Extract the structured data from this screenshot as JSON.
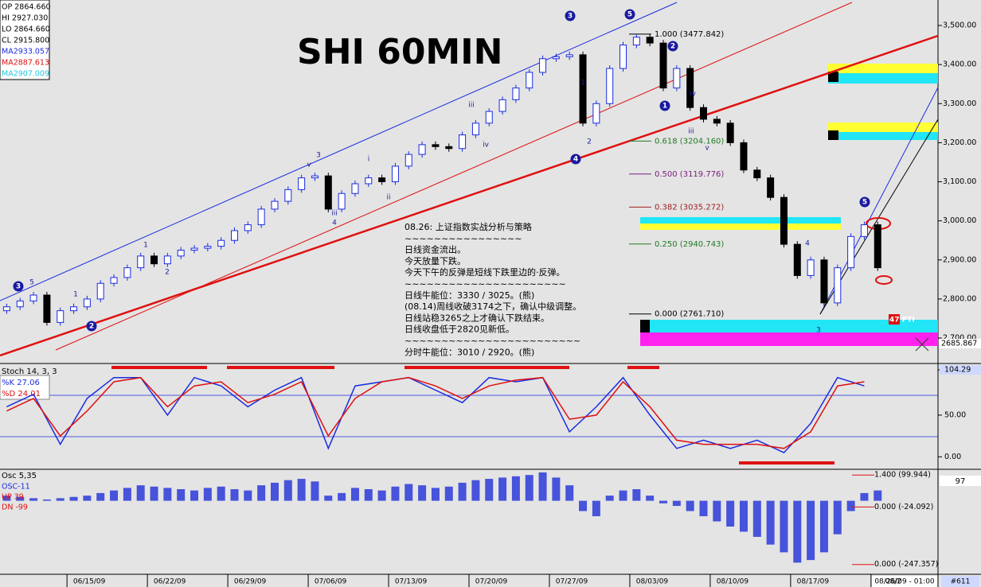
{
  "chart_data": {
    "type": "candlestick",
    "title": "SHI 60MIN",
    "info": [
      "OP 2864.660",
      "HI 2927.030",
      "LO 2864.660",
      "CL 2915.800",
      "MA2933.057",
      "MA2887.613",
      "MA2907.009"
    ],
    "xlim": [
      0,
      70
    ],
    "xticks": [
      {
        "value": 5,
        "label": "06/15/09"
      },
      {
        "value": 11,
        "label": "06/22/09"
      },
      {
        "value": 17,
        "label": "06/29/09"
      },
      {
        "value": 23,
        "label": "07/06/09"
      },
      {
        "value": 29,
        "label": "07/13/09"
      },
      {
        "value": 35,
        "label": "07/20/09"
      },
      {
        "value": 41,
        "label": "07/27/09"
      },
      {
        "value": 47,
        "label": "08/03/09"
      },
      {
        "value": 53,
        "label": "08/10/09"
      },
      {
        "value": 59,
        "label": "08/17/09"
      },
      {
        "value": 65,
        "label": "08/2"
      }
    ],
    "time_label": "08/26/09 - 01:00",
    "bar_count": "#611",
    "ylim": [
      2639,
      3555
    ],
    "yticks": [
      {
        "value": 3500,
        "label": "3,500.00"
      },
      {
        "value": 3400,
        "label": "3,400.00"
      },
      {
        "value": 3300,
        "label": "3,300.00"
      },
      {
        "value": 3200,
        "label": "3,200.00"
      },
      {
        "value": 3100,
        "label": "3,100.00"
      },
      {
        "value": 3000,
        "label": "3,000.00"
      },
      {
        "value": 2900,
        "label": "2,900.00"
      },
      {
        "value": 2800,
        "label": "2,800.00"
      },
      {
        "value": 2700,
        "label": "2,700.00"
      }
    ],
    "last_price": {
      "value": 2685.867,
      "label": "2685.867"
    },
    "pti": "47 PTI",
    "open": [
      2770,
      2780,
      2795,
      2810,
      2740,
      2770,
      2780,
      2800,
      2840,
      2855,
      2880,
      2910,
      2890,
      2910,
      2925,
      2930,
      2935,
      2950,
      2975,
      2990,
      3030,
      3050,
      3080,
      3110,
      3115,
      3030,
      3070,
      3095,
      3110,
      3100,
      3140,
      3170,
      3195,
      3190,
      3185,
      3220,
      3250,
      3280,
      3310,
      3340,
      3380,
      3415,
      3420,
      3425,
      3250,
      3300,
      3390,
      3450,
      3470,
      3455,
      3340,
      3390,
      3290,
      3260,
      3250,
      3200,
      3130,
      3110,
      3060,
      2940,
      2860,
      2900,
      2790,
      2880,
      2960,
      2990
    ],
    "close": [
      2780,
      2795,
      2810,
      2740,
      2770,
      2780,
      2800,
      2840,
      2855,
      2880,
      2910,
      2890,
      2910,
      2925,
      2930,
      2935,
      2950,
      2975,
      2990,
      3030,
      3050,
      3080,
      3110,
      3115,
      3030,
      3070,
      3095,
      3110,
      3100,
      3140,
      3170,
      3195,
      3190,
      3185,
      3220,
      3250,
      3280,
      3310,
      3340,
      3380,
      3415,
      3420,
      3425,
      3250,
      3300,
      3390,
      3450,
      3470,
      3455,
      3340,
      3390,
      3290,
      3260,
      3250,
      3200,
      3130,
      3110,
      3060,
      2940,
      2860,
      2900,
      2790,
      2880,
      2960,
      2990,
      2880
    ],
    "fib": [
      {
        "value": 3477.842,
        "label": "1.000 (3477.842)"
      },
      {
        "value": 3204.16,
        "label": "0.618 (3204.160)"
      },
      {
        "value": 3119.776,
        "label": "0.500 (3119.776)"
      },
      {
        "value": 3035.272,
        "label": "0.382 (3035.272)"
      },
      {
        "value": 2940.743,
        "label": "0.250 (2940.743)"
      },
      {
        "value": 2761.71,
        "label": "0.000 (2761.710)"
      }
    ],
    "notes": [
      "08.26: 上证指数实战分析与策略",
      "~~~~~~~~~~~~~~~~",
      "日线资金流出。",
      "今天放量下跌。",
      "今天下午的反弹是短线下跌里边的·反弹。",
      "~~~~~~~~~~~~~~~~~~~~~~",
      "日线牛能位：3330 / 3025。(熊)",
      "(08.14)周线收破3174之下，确认中级调整。",
      "日线站稳3265之上才确认下跌结束。",
      "日线收盘低于2820见新低。",
      "~~~~~~~~~~~~~~~~~~~~~~~~",
      "分时牛能位：3010 / 2920。(熊)"
    ],
    "waves": [
      "3",
      "5",
      "1",
      "2",
      "1",
      "2",
      "3",
      "iii",
      "4",
      "i",
      "ii",
      "iii",
      "iv",
      "v",
      "3",
      "5",
      "1",
      "2",
      "4",
      "2",
      "1",
      "iv",
      "v",
      "iii",
      "4",
      "3",
      "5"
    ],
    "stoch": {
      "title": "Stoch 14, 3, 3",
      "k_label": "%K  27.06",
      "d_label": "%D  24.01",
      "ylim": [
        -14,
        110
      ],
      "yticks": [
        104.29,
        {
          "value": 50,
          "label": "50.00"
        },
        {
          "value": 0,
          "label": "0.00"
        }
      ],
      "x": [
        0.5,
        2.5,
        4.5,
        6.5,
        8.5,
        10.5,
        12.5,
        14.5,
        16.5,
        18.5,
        20.5,
        22.5,
        24.5,
        26.5,
        28.5,
        30.5,
        32.5,
        34.5,
        36.5,
        38.5,
        40.5,
        42.5,
        44.5,
        46.5,
        48.5,
        50.5,
        52.5,
        54.5,
        56.5,
        58.5,
        60.5,
        62.5,
        64.5
      ],
      "series": [
        {
          "name": "%K",
          "color": "#1a2ce0",
          "values": [
            60,
            75,
            15,
            70,
            95,
            95,
            50,
            95,
            85,
            60,
            80,
            95,
            10,
            85,
            90,
            95,
            80,
            65,
            95,
            90,
            95,
            30,
            60,
            95,
            50,
            10,
            20,
            10,
            20,
            5,
            40,
            95,
            85
          ]
        },
        {
          "name": "%D",
          "color": "#e01010",
          "values": [
            55,
            70,
            25,
            55,
            90,
            95,
            60,
            85,
            90,
            65,
            75,
            90,
            25,
            70,
            90,
            95,
            85,
            70,
            85,
            92,
            95,
            45,
            50,
            90,
            60,
            20,
            15,
            15,
            15,
            10,
            30,
            85,
            90
          ]
        }
      ]
    },
    "osc": {
      "title": "Osc 5,35",
      "labels": [
        "OSC-11",
        "UP  39",
        "DN  -99"
      ],
      "value_box": "97",
      "color": "#2a3ad8",
      "ylim": [
        -279,
        116
      ],
      "yticks": [
        {
          "value": 99.944,
          "label": "1.400 (99.944)"
        },
        {
          "value": -24.092,
          "label": "0.000 (-24.092)"
        },
        {
          "value": -247.357,
          "label": "0.000 (-247.357)"
        }
      ],
      "values": [
        20,
        15,
        10,
        5,
        10,
        15,
        20,
        30,
        40,
        50,
        60,
        55,
        50,
        45,
        40,
        50,
        55,
        45,
        40,
        60,
        70,
        80,
        85,
        75,
        20,
        30,
        50,
        45,
        40,
        55,
        65,
        60,
        50,
        55,
        70,
        80,
        85,
        90,
        95,
        100,
        110,
        90,
        60,
        -40,
        -60,
        20,
        40,
        45,
        20,
        -10,
        -20,
        -40,
        -60,
        -80,
        -100,
        -120,
        -140,
        -170,
        -200,
        -240,
        -230,
        -200,
        -130,
        -40,
        30,
        40
      ]
    }
  }
}
